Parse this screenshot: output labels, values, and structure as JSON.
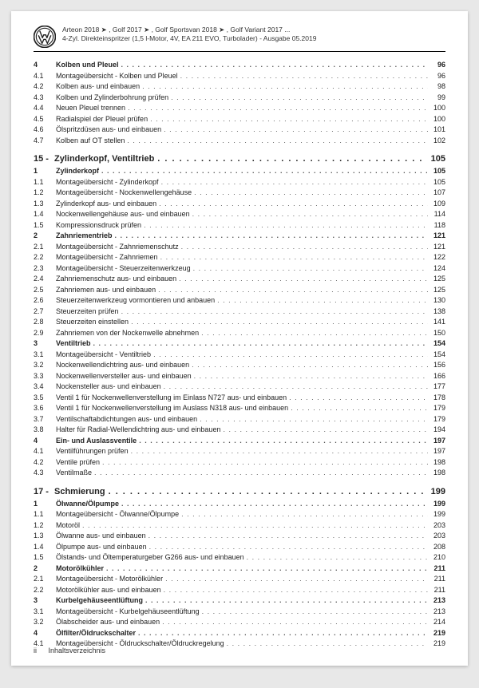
{
  "header": {
    "line1": "Arteon 2018 ➤ , Golf 2017 ➤ , Golf Sportsvan 2018 ➤ , Golf Variant 2017 ...",
    "line2": "4-Zyl. Direkteinspritzer (1,5 l-Motor, 4V, EA 211 EVO, Turbolader) - Ausgabe 05.2019"
  },
  "footer": {
    "page": "ii",
    "label": "Inhaltsverzeichnis"
  },
  "dots": ". . . . . . . . . . . . . . . . . . . . . . . . . . . . . . . . . . . . . . . . . . . . . . . . . . . . . . . . . . . . . . . . . . . . . . . . . . . . . . . . . . . . . . . . . . . . . . . . . . . . . .",
  "sections": [
    {
      "chapter": null,
      "rows": [
        {
          "n": "4",
          "t": "Kolben und Pleuel",
          "p": "96",
          "b": true
        },
        {
          "n": "4.1",
          "t": "Montageübersicht - Kolben und Pleuel",
          "p": "96"
        },
        {
          "n": "4.2",
          "t": "Kolben aus- und einbauen",
          "p": "98"
        },
        {
          "n": "4.3",
          "t": "Kolben und Zylinderbohrung prüfen",
          "p": "99"
        },
        {
          "n": "4.4",
          "t": "Neuen Pleuel trennen",
          "p": "100"
        },
        {
          "n": "4.5",
          "t": "Radialspiel der Pleuel prüfen",
          "p": "100"
        },
        {
          "n": "4.6",
          "t": "Ölspritzdüsen aus- und einbauen",
          "p": "101"
        },
        {
          "n": "4.7",
          "t": "Kolben auf OT stellen",
          "p": "102"
        }
      ]
    },
    {
      "chapter": {
        "n": "15 -",
        "t": "Zylinderkopf, Ventiltrieb",
        "p": "105"
      },
      "rows": [
        {
          "n": "1",
          "t": "Zylinderkopf",
          "p": "105",
          "b": true
        },
        {
          "n": "1.1",
          "t": "Montageübersicht - Zylinderkopf",
          "p": "105"
        },
        {
          "n": "1.2",
          "t": "Montageübersicht - Nockenwellengehäuse",
          "p": "107"
        },
        {
          "n": "1.3",
          "t": "Zylinderkopf aus- und einbauen",
          "p": "109"
        },
        {
          "n": "1.4",
          "t": "Nockenwellengehäuse aus- und einbauen",
          "p": "114"
        },
        {
          "n": "1.5",
          "t": "Kompressionsdruck prüfen",
          "p": "118"
        },
        {
          "n": "2",
          "t": "Zahnriementrieb",
          "p": "121",
          "b": true
        },
        {
          "n": "2.1",
          "t": "Montageübersicht - Zahnriemenschutz",
          "p": "121"
        },
        {
          "n": "2.2",
          "t": "Montageübersicht - Zahnriemen",
          "p": "122"
        },
        {
          "n": "2.3",
          "t": "Montageübersicht - Steuerzeitenwerkzeug",
          "p": "124"
        },
        {
          "n": "2.4",
          "t": "Zahnriemenschutz aus- und einbauen",
          "p": "125"
        },
        {
          "n": "2.5",
          "t": "Zahnriemen aus- und einbauen",
          "p": "125"
        },
        {
          "n": "2.6",
          "t": "Steuerzeitenwerkzeug vormontieren und anbauen",
          "p": "130"
        },
        {
          "n": "2.7",
          "t": "Steuerzeiten prüfen",
          "p": "138"
        },
        {
          "n": "2.8",
          "t": "Steuerzeiten einstellen",
          "p": "141"
        },
        {
          "n": "2.9",
          "t": "Zahnriemen von der Nockenwelle abnehmen",
          "p": "150"
        },
        {
          "n": "3",
          "t": "Ventiltrieb",
          "p": "154",
          "b": true
        },
        {
          "n": "3.1",
          "t": "Montageübersicht - Ventiltrieb",
          "p": "154"
        },
        {
          "n": "3.2",
          "t": "Nockenwellendichtring aus- und einbauen",
          "p": "156"
        },
        {
          "n": "3.3",
          "t": "Nockenwellenversteller aus- und einbauen",
          "p": "166"
        },
        {
          "n": "3.4",
          "t": "Nockensteller aus- und einbauen",
          "p": "177"
        },
        {
          "n": "3.5",
          "t": "Ventil 1 für Nockenwellenverstellung im Einlass N727 aus- und einbauen",
          "p": "178"
        },
        {
          "n": "3.6",
          "t": "Ventil 1 für Nockenwellenverstellung im Auslass N318 aus- und einbauen",
          "p": "179"
        },
        {
          "n": "3.7",
          "t": "Ventilschaftabdichtungen aus- und einbauen",
          "p": "179"
        },
        {
          "n": "3.8",
          "t": "Halter für Radial-Wellendichtring aus- und einbauen",
          "p": "194"
        },
        {
          "n": "4",
          "t": "Ein- und Auslassventile",
          "p": "197",
          "b": true
        },
        {
          "n": "4.1",
          "t": "Ventilführungen prüfen",
          "p": "197"
        },
        {
          "n": "4.2",
          "t": "Ventile prüfen",
          "p": "198"
        },
        {
          "n": "4.3",
          "t": "Ventilmaße",
          "p": "198"
        }
      ]
    },
    {
      "chapter": {
        "n": "17 -",
        "t": "Schmierung",
        "p": "199"
      },
      "rows": [
        {
          "n": "1",
          "t": "Ölwanne/Ölpumpe",
          "p": "199",
          "b": true
        },
        {
          "n": "1.1",
          "t": "Montageübersicht - Ölwanne/Ölpumpe",
          "p": "199"
        },
        {
          "n": "1.2",
          "t": "Motoröl",
          "p": "203"
        },
        {
          "n": "1.3",
          "t": "Ölwanne aus- und einbauen",
          "p": "203"
        },
        {
          "n": "1.4",
          "t": "Ölpumpe aus- und einbauen",
          "p": "208"
        },
        {
          "n": "1.5",
          "t": "Ölstands- und Öltemperaturgeber G266 aus- und einbauen",
          "p": "210"
        },
        {
          "n": "2",
          "t": "Motorölkühler",
          "p": "211",
          "b": true
        },
        {
          "n": "2.1",
          "t": "Montageübersicht - Motorölkühler",
          "p": "211"
        },
        {
          "n": "2.2",
          "t": "Motorölkühler aus- und einbauen",
          "p": "211"
        },
        {
          "n": "3",
          "t": "Kurbelgehäuseentlüftung",
          "p": "213",
          "b": true
        },
        {
          "n": "3.1",
          "t": "Montageübersicht - Kurbelgehäuseentlüftung",
          "p": "213"
        },
        {
          "n": "3.2",
          "t": "Ölabscheider aus- und einbauen",
          "p": "214"
        },
        {
          "n": "4",
          "t": "Ölfilter/Öldruckschalter",
          "p": "219",
          "b": true
        },
        {
          "n": "4.1",
          "t": "Montageübersicht - Öldruckschalter/Öldruckregelung",
          "p": "219"
        }
      ]
    }
  ]
}
